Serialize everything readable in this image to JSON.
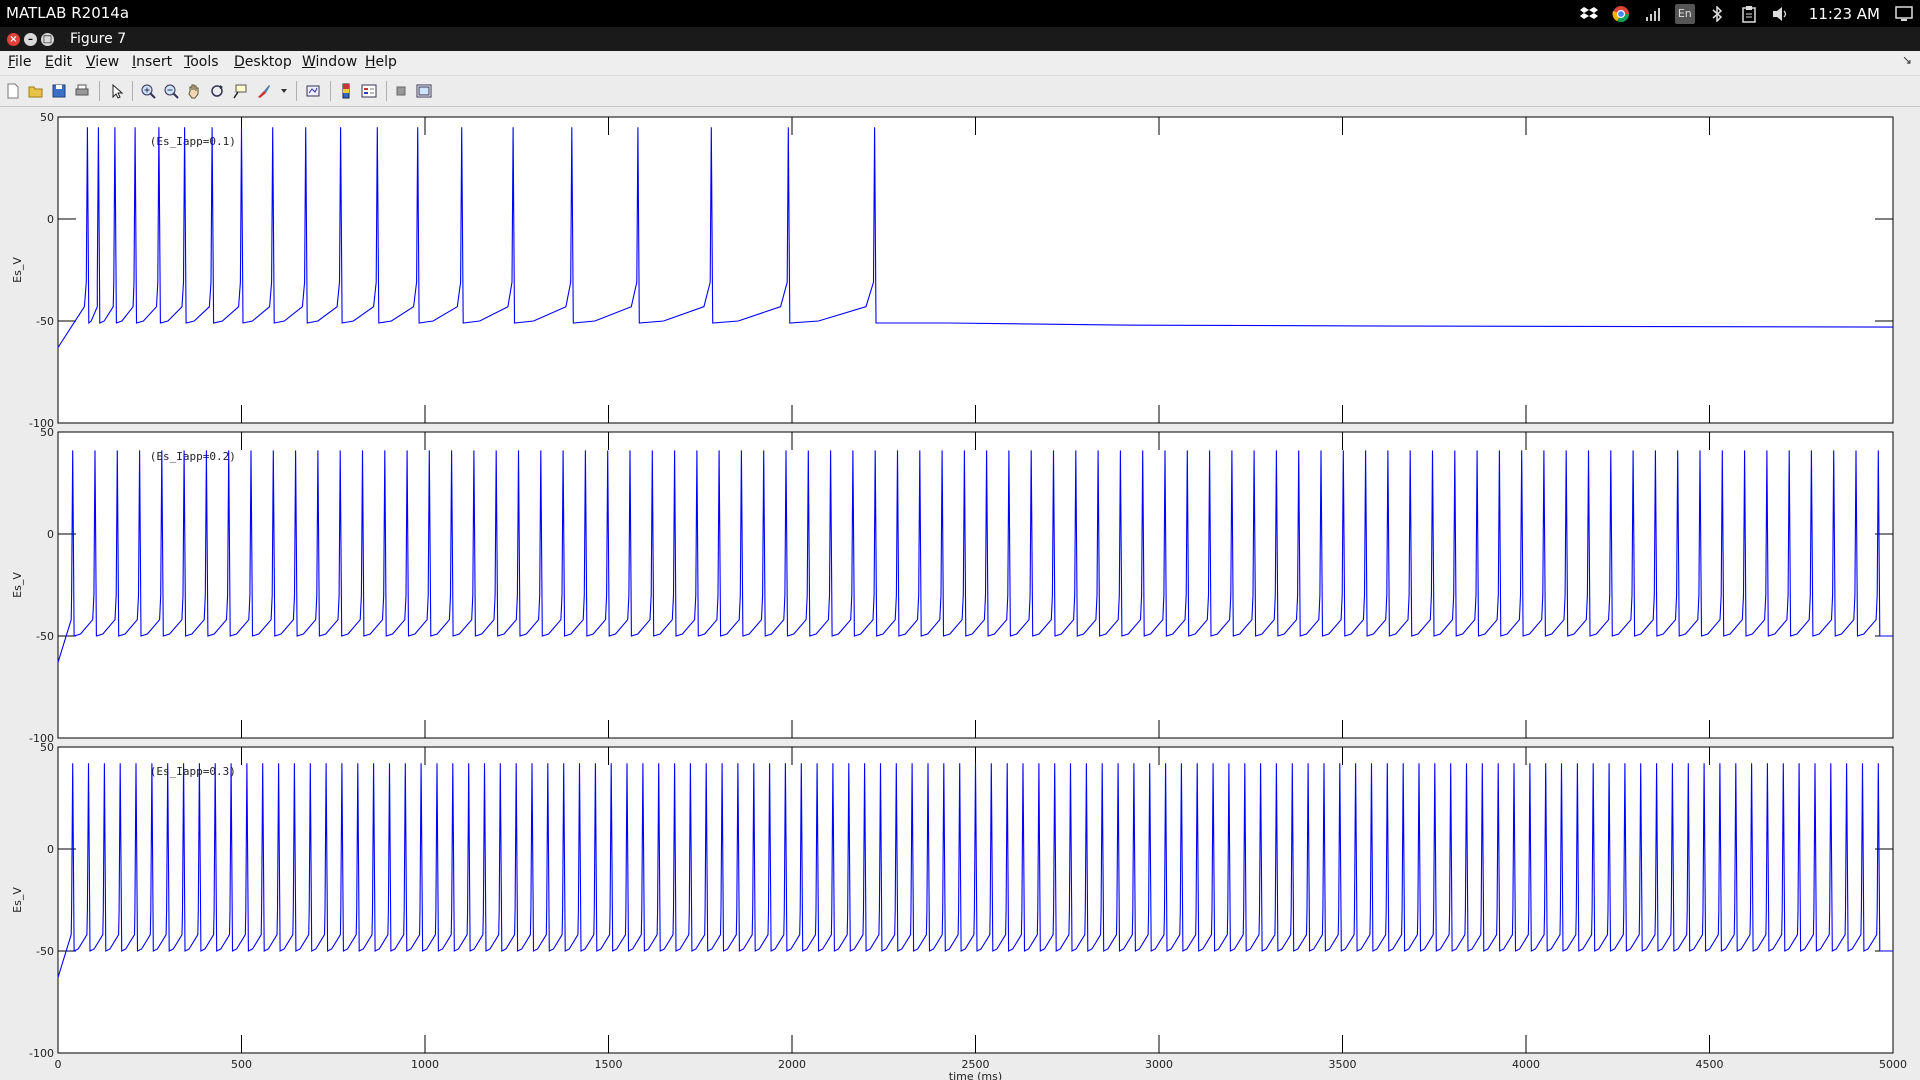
{
  "os_bar": {
    "app_title": "MATLAB R2014a",
    "clock": "11:23 AM",
    "tray_icons": [
      "dropbox-icon",
      "chrome-icon",
      "signal-icon",
      "keyboard-layout-icon",
      "bluetooth-icon",
      "clipboard-icon",
      "volume-icon",
      "display-icon"
    ],
    "keyboard_layout": "En"
  },
  "window": {
    "title": "Figure 7"
  },
  "menu": {
    "items": [
      {
        "label": "File",
        "mnemonic": "F",
        "rest": "ile"
      },
      {
        "label": "Edit",
        "mnemonic": "E",
        "rest": "dit"
      },
      {
        "label": "View",
        "mnemonic": "V",
        "rest": "iew"
      },
      {
        "label": "Insert",
        "mnemonic": "I",
        "rest": "nsert"
      },
      {
        "label": "Tools",
        "mnemonic": "T",
        "rest": "ools"
      },
      {
        "label": "Desktop",
        "mnemonic": "D",
        "rest": "esktop"
      },
      {
        "label": "Window",
        "mnemonic": "W",
        "rest": "indow"
      },
      {
        "label": "Help",
        "mnemonic": "H",
        "rest": "elp"
      }
    ]
  },
  "toolbar": {
    "buttons": [
      "new-figure-icon",
      "open-file-icon",
      "save-icon",
      "print-icon",
      "edit-plot-icon",
      "zoom-in-icon",
      "zoom-out-icon",
      "pan-icon",
      "rotate-3d-icon",
      "data-cursor-icon",
      "brush-icon",
      "link-plot-icon",
      "colorbar-icon",
      "legend-icon",
      "hide-plot-tools-icon",
      "show-plot-tools-icon"
    ]
  },
  "chart_data": [
    {
      "type": "line",
      "ylabel": "Es_V",
      "annotation": "(Es_Iapp=0.1)",
      "xlim": [
        0,
        5000
      ],
      "ylim": [
        -100,
        50
      ],
      "yticks": [
        -100,
        -50,
        0,
        50
      ],
      "color": "#0000ff",
      "spike_times": [
        80,
        110,
        155,
        210,
        275,
        345,
        420,
        500,
        585,
        675,
        770,
        870,
        980,
        1100,
        1240,
        1400,
        1580,
        1780,
        1990,
        2225
      ],
      "spike_peak": 45,
      "trough": -51,
      "resting_after_last_spike": -53
    },
    {
      "type": "line",
      "ylabel": "Es_V",
      "annotation": "(Es_Iapp=0.2)",
      "xlim": [
        0,
        5000
      ],
      "ylim": [
        -100,
        50
      ],
      "yticks": [
        -100,
        -50,
        0,
        50
      ],
      "color": "#0000ff",
      "spike_count": 82,
      "spike_peak": 41,
      "trough": -50
    },
    {
      "type": "line",
      "ylabel": "Es_V",
      "annotation": "(Es_Iapp=0.3)",
      "xlabel": "time (ms)",
      "xlim": [
        0,
        5000
      ],
      "ylim": [
        -100,
        50
      ],
      "xticks": [
        0,
        500,
        1000,
        1500,
        2000,
        2500,
        3000,
        3500,
        4000,
        4500,
        5000
      ],
      "yticks": [
        -100,
        -50,
        0,
        50
      ],
      "color": "#0000ff",
      "spike_count": 115,
      "spike_peak": 42,
      "trough": -50
    }
  ]
}
